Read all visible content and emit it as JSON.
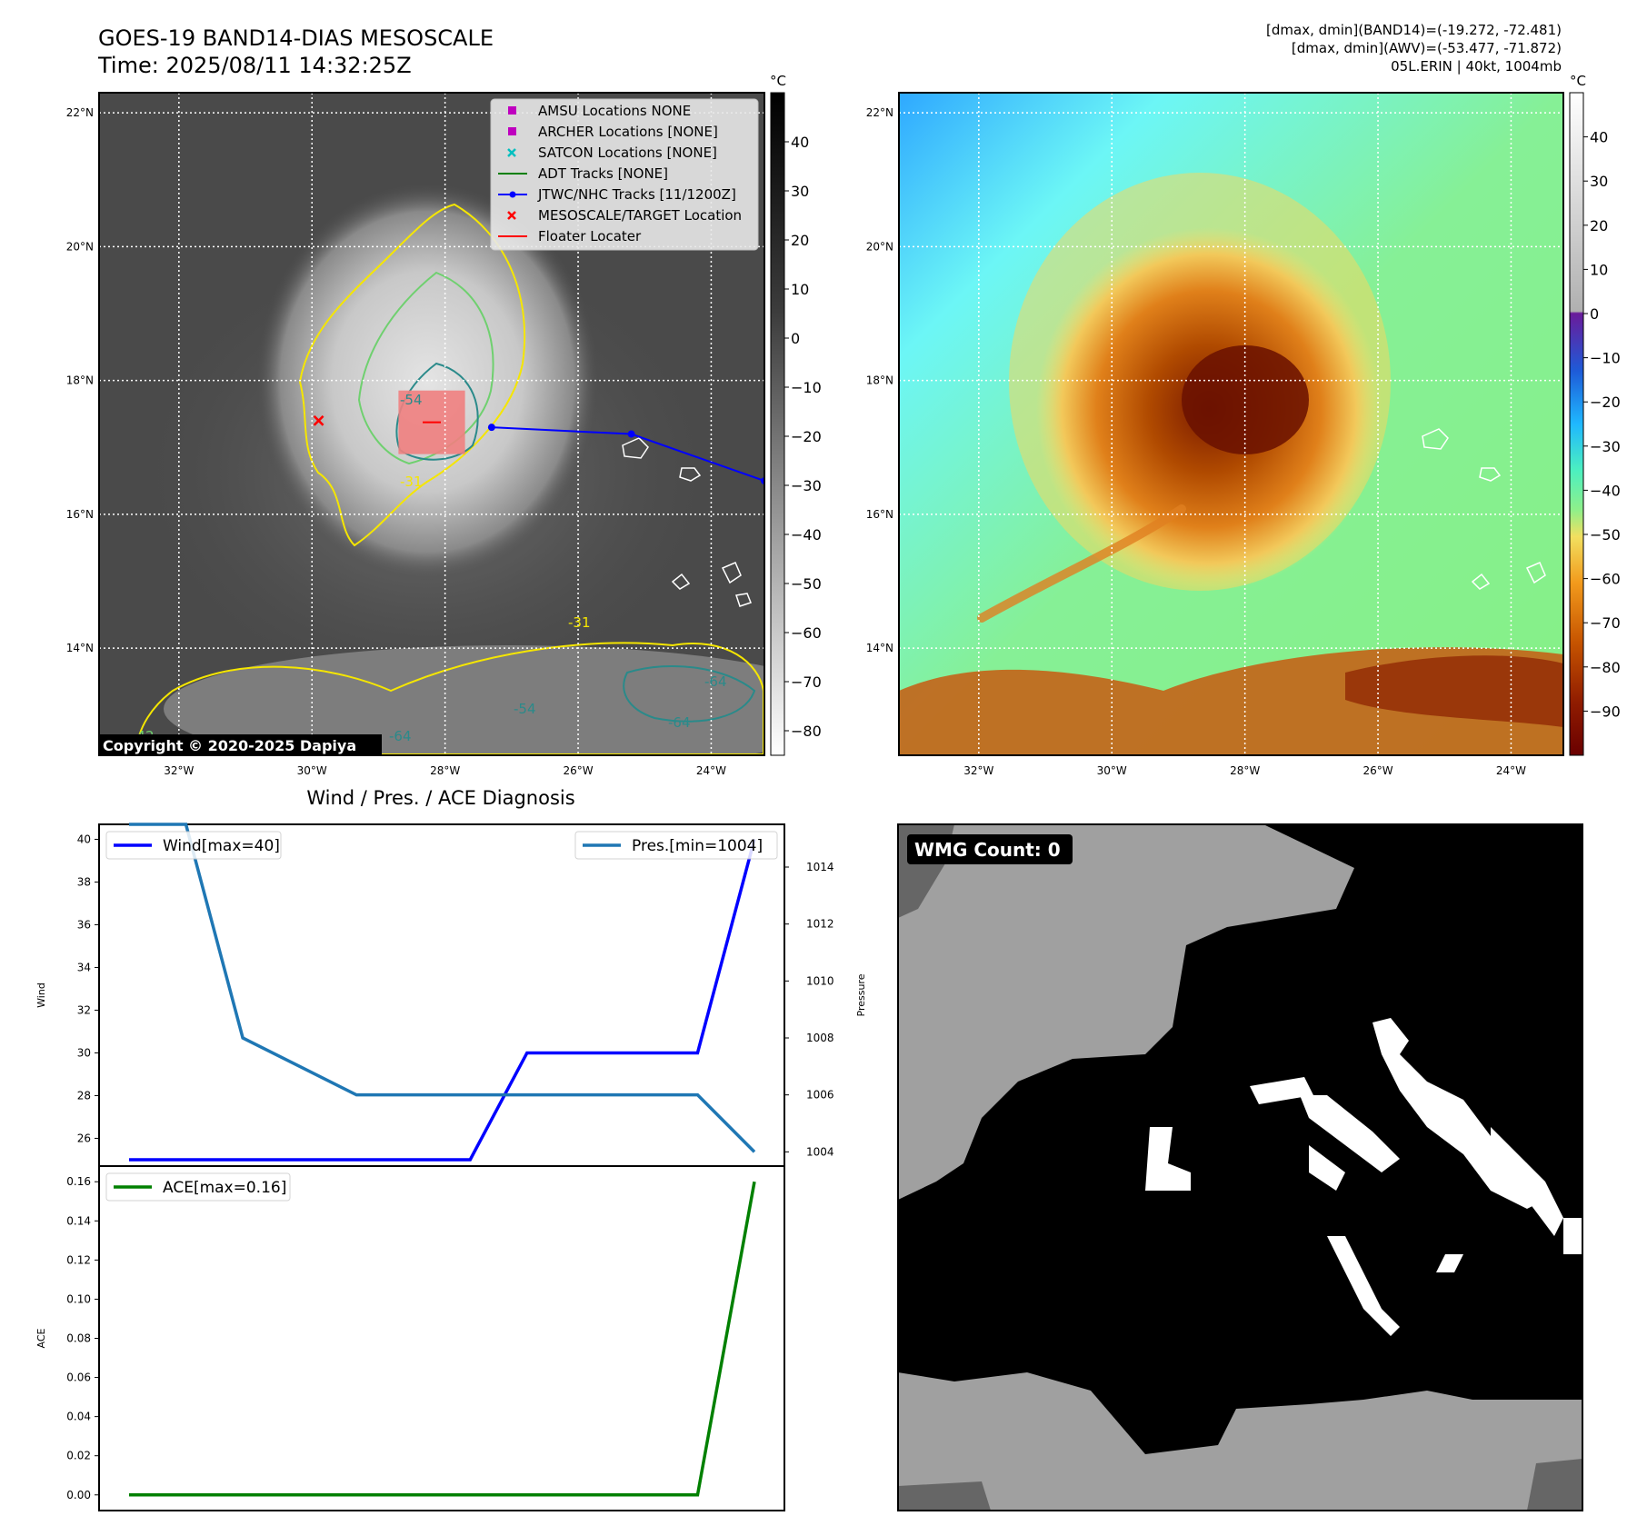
{
  "header": {
    "title_line1": "GOES-19 BAND14-DIAS MESOSCALE",
    "title_line2": "Time: 2025/08/11 14:32:25Z",
    "info_line1": "[dmax, dmin](BAND14)=(-19.272, -72.481)",
    "info_line2": "[dmax, dmin](AWV)=(-53.477, -71.872)",
    "info_line3": "05L.ERIN | 40kt, 1004mb"
  },
  "map": {
    "lat_labels": [
      "22°N",
      "20°N",
      "18°N",
      "16°N",
      "14°N"
    ],
    "lon_labels": [
      "32°W",
      "30°W",
      "28°W",
      "26°W",
      "24°W"
    ],
    "copyright": "Copyright © 2020-2025 Dapiya",
    "legend": [
      {
        "label": "AMSU Locations NONE",
        "color": "#bf00bf",
        "marker": "square"
      },
      {
        "label": "ARCHER Locations [NONE]",
        "color": "#bf00bf",
        "marker": "square"
      },
      {
        "label": "SATCON Locations [NONE]",
        "color": "#00bfbf",
        "marker": "x"
      },
      {
        "label": "ADT Tracks [NONE]",
        "color": "#008000",
        "marker": "line"
      },
      {
        "label": "JTWC/NHC Tracks [11/1200Z]",
        "color": "#0000ff",
        "marker": "line-dot"
      },
      {
        "label": "MESOSCALE/TARGET Location",
        "color": "#ff0000",
        "marker": "x"
      },
      {
        "label": "Floater Locater",
        "color": "#ff0000",
        "marker": "line"
      }
    ],
    "contour_labels": [
      "-54",
      "-31",
      "-31",
      "-64",
      "-54",
      "-64",
      "-42",
      "-31",
      "-42",
      "-64"
    ],
    "track": [
      {
        "lon": -27.3,
        "lat": 17.3
      },
      {
        "lon": -25.2,
        "lat": 17.2
      },
      {
        "lon": -23.2,
        "lat": 16.5
      }
    ],
    "target": {
      "lon": -29.9,
      "lat": 17.4
    },
    "floater_box": {
      "lon_min": -28.7,
      "lon_max": -27.7,
      "lat_min": 16.9,
      "lat_max": 17.85
    }
  },
  "colorbar_gray": {
    "unit": "°C",
    "ticks": [
      "40",
      "30",
      "20",
      "10",
      "0",
      "−10",
      "−20",
      "−30",
      "−40",
      "−50",
      "−60",
      "−70",
      "−80"
    ],
    "range": [
      -85,
      50
    ]
  },
  "colorbar_color": {
    "unit": "°C",
    "ticks": [
      "40",
      "30",
      "20",
      "10",
      "0",
      "−10",
      "−20",
      "−30",
      "−40",
      "−50",
      "−60",
      "−70",
      "−80",
      "−90"
    ],
    "range": [
      -100,
      50
    ]
  },
  "chart_data": [
    {
      "type": "line",
      "title": "Wind / Pres. / ACE Diagnosis",
      "x": [
        0,
        1,
        2,
        3,
        4,
        5,
        6,
        7,
        8,
        9,
        10,
        11
      ],
      "series": [
        {
          "name": "Wind[max=40]",
          "axis": "left",
          "color": "#0000ff",
          "values": [
            25,
            25,
            25,
            25,
            25,
            25,
            25,
            30,
            30,
            30,
            30,
            40
          ]
        },
        {
          "name": "Pres.[min=1004]",
          "axis": "right",
          "color": "#1f77b4",
          "values": [
            1015.5,
            1015.5,
            1008,
            1007,
            1006,
            1006,
            1006,
            1006,
            1006,
            1006,
            1006,
            1004
          ]
        }
      ],
      "ylabel": "Wind",
      "ylabel_right": "Pressure",
      "ylim": [
        24.7,
        40.7
      ],
      "ylim_right": [
        1003.5,
        1015.5
      ],
      "yticks": [
        26,
        28,
        30,
        32,
        34,
        36,
        38,
        40
      ],
      "yticks_right": [
        1004,
        1006,
        1008,
        1010,
        1012,
        1014
      ],
      "legend_positions": [
        "top-left",
        "top-right"
      ]
    },
    {
      "type": "line",
      "x": [
        0,
        1,
        2,
        3,
        4,
        5,
        6,
        7,
        8,
        9,
        10,
        11
      ],
      "series": [
        {
          "name": "ACE[max=0.16]",
          "color": "#008000",
          "values": [
            0,
            0,
            0,
            0,
            0,
            0,
            0,
            0,
            0,
            0,
            0,
            0.16
          ]
        }
      ],
      "ylabel": "ACE",
      "ylim": [
        -0.008,
        0.168
      ],
      "yticks": [
        "0.00",
        "0.02",
        "0.04",
        "0.06",
        "0.08",
        "0.10",
        "0.12",
        "0.14",
        "0.16"
      ],
      "legend_positions": [
        "top-left"
      ]
    }
  ],
  "wmg": {
    "count_label": "WMG Count: 0"
  }
}
